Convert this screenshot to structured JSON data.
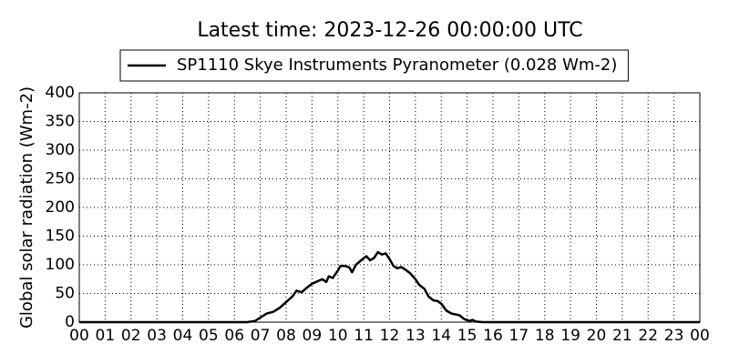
{
  "chart_data": {
    "type": "line",
    "title": "Latest time: 2023-12-26 00:00:00 UTC",
    "y_label": "Global solar radiation (Wm-2)",
    "grid": true,
    "legend": "upper center",
    "xlim": [
      0,
      24
    ],
    "ylim": [
      0,
      400
    ],
    "xticks": [
      {
        "value": 0,
        "label": "00"
      },
      {
        "value": 1,
        "label": "01"
      },
      {
        "value": 2,
        "label": "02"
      },
      {
        "value": 3,
        "label": "03"
      },
      {
        "value": 4,
        "label": "04"
      },
      {
        "value": 5,
        "label": "05"
      },
      {
        "value": 6,
        "label": "06"
      },
      {
        "value": 7,
        "label": "07"
      },
      {
        "value": 8,
        "label": "08"
      },
      {
        "value": 9,
        "label": "09"
      },
      10,
      11,
      12,
      13,
      14,
      15,
      16,
      17,
      18,
      19,
      20,
      21,
      22,
      23,
      {
        "value": 24,
        "label": "00"
      }
    ],
    "yticks": [
      0,
      50,
      100,
      150,
      200,
      250,
      300,
      350,
      400
    ],
    "series": [
      {
        "name": "SP1110 Skye Instruments Pyranometer (0.028 Wm-2)",
        "color": "#000000",
        "x": [
          0,
          6.5,
          6.8,
          7.0,
          7.25,
          7.5,
          7.75,
          8.0,
          8.25,
          8.4,
          8.6,
          8.8,
          9.0,
          9.25,
          9.4,
          9.55,
          9.65,
          9.8,
          10.0,
          10.1,
          10.3,
          10.45,
          10.55,
          10.7,
          10.9,
          11.1,
          11.25,
          11.4,
          11.55,
          11.7,
          11.85,
          12.0,
          12.15,
          12.3,
          12.45,
          12.6,
          12.8,
          13.0,
          13.15,
          13.35,
          13.5,
          13.7,
          13.85,
          14.0,
          14.2,
          14.4,
          14.7,
          14.9,
          15.1,
          15.2,
          15.35,
          15.6,
          24
        ],
        "values": [
          0,
          0,
          2,
          8,
          15,
          18,
          25,
          35,
          45,
          55,
          52,
          60,
          67,
          72,
          75,
          70,
          80,
          77,
          90,
          98,
          98,
          95,
          87,
          100,
          108,
          115,
          108,
          112,
          122,
          118,
          120,
          110,
          98,
          94,
          96,
          92,
          85,
          75,
          65,
          58,
          45,
          38,
          37,
          32,
          20,
          15,
          12,
          5,
          2,
          4,
          1,
          0,
          0
        ]
      }
    ]
  }
}
